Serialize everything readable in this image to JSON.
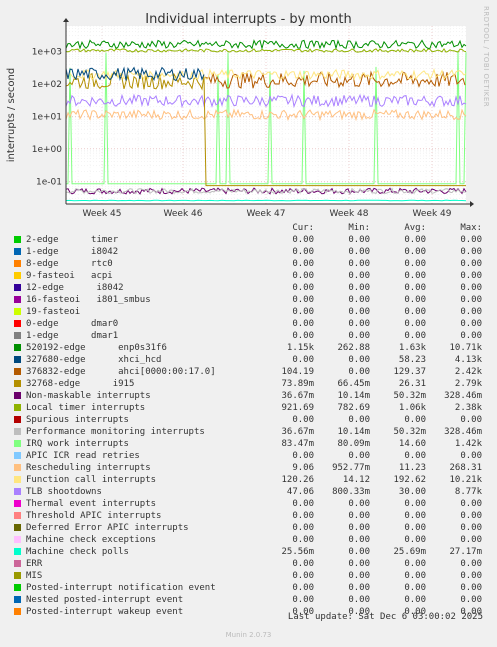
{
  "chart_data": {
    "type": "line",
    "title": "Individual interrupts - by month",
    "ylabel": "interrupts / second",
    "yscale": "log",
    "ylim": [
      0.02,
      6000
    ],
    "ytick_values": [
      0.1,
      1,
      10,
      100,
      1000
    ],
    "ytick_labels": [
      "1e-01",
      "1e+00",
      "1e+01",
      "1e+02",
      "1e+03"
    ],
    "x_ticks": [
      "Week 45",
      "Week 46",
      "Week 47",
      "Week 48",
      "Week 49"
    ],
    "grid": true,
    "legend_headers": {
      "cur": "Cur:",
      "min": "Min:",
      "avg": "Avg:",
      "max": "Max:"
    },
    "series": [
      {
        "name": "2-edge      timer",
        "color": "#00cc00",
        "cur": "0.00",
        "min": "0.00",
        "avg": "0.00",
        "max": "0.00"
      },
      {
        "name": "1-edge      i8042",
        "color": "#0066b3",
        "cur": "0.00",
        "min": "0.00",
        "avg": "0.00",
        "max": "0.00"
      },
      {
        "name": "8-edge      rtc0",
        "color": "#ff8000",
        "cur": "0.00",
        "min": "0.00",
        "avg": "0.00",
        "max": "0.00"
      },
      {
        "name": "9-fasteoi   acpi",
        "color": "#ffcc00",
        "cur": "0.00",
        "min": "0.00",
        "avg": "0.00",
        "max": "0.00"
      },
      {
        "name": "12-edge      i8042",
        "color": "#330099",
        "cur": "0.00",
        "min": "0.00",
        "avg": "0.00",
        "max": "0.00"
      },
      {
        "name": "16-fasteoi   i801_smbus",
        "color": "#990099",
        "cur": "0.00",
        "min": "0.00",
        "avg": "0.00",
        "max": "0.00"
      },
      {
        "name": "19-fasteoi",
        "color": "#ccff00",
        "cur": "0.00",
        "min": "0.00",
        "avg": "0.00",
        "max": "0.00"
      },
      {
        "name": "0-edge      dmar0",
        "color": "#ff0000",
        "cur": "0.00",
        "min": "0.00",
        "avg": "0.00",
        "max": "0.00"
      },
      {
        "name": "1-edge      dmar1",
        "color": "#808080",
        "cur": "0.00",
        "min": "0.00",
        "avg": "0.00",
        "max": "0.00"
      },
      {
        "name": "520192-edge      enp0s31f6",
        "color": "#008f00",
        "cur": "1.15k",
        "min": "262.88",
        "avg": "1.63k",
        "max": "10.71k"
      },
      {
        "name": "327680-edge      xhci_hcd",
        "color": "#00487d",
        "cur": "0.00",
        "min": "0.00",
        "avg": "58.23",
        "max": "4.13k"
      },
      {
        "name": "376832-edge      ahci[0000:00:17.0]",
        "color": "#b35a00",
        "cur": "104.19",
        "min": "0.00",
        "avg": "129.37",
        "max": "2.42k"
      },
      {
        "name": "32768-edge      i915",
        "color": "#b38f00",
        "cur": "73.89m",
        "min": "66.45m",
        "avg": "26.31",
        "max": "2.79k"
      },
      {
        "name": "Non-maskable interrupts",
        "color": "#6b006b",
        "cur": "36.67m",
        "min": "10.14m",
        "avg": "50.32m",
        "max": "328.46m"
      },
      {
        "name": "Local timer interrupts",
        "color": "#8fb300",
        "cur": "921.69",
        "min": "782.69",
        "avg": "1.06k",
        "max": "2.38k"
      },
      {
        "name": "Spurious interrupts",
        "color": "#b30000",
        "cur": "0.00",
        "min": "0.00",
        "avg": "0.00",
        "max": "0.00"
      },
      {
        "name": "Performance monitoring interrupts",
        "color": "#bebebe",
        "cur": "36.67m",
        "min": "10.14m",
        "avg": "50.32m",
        "max": "328.46m"
      },
      {
        "name": "IRQ work interrupts",
        "color": "#80ff80",
        "cur": "83.47m",
        "min": "80.09m",
        "avg": "14.60",
        "max": "1.42k"
      },
      {
        "name": "APIC ICR read retries",
        "color": "#80c9ff",
        "cur": "0.00",
        "min": "0.00",
        "avg": "0.00",
        "max": "0.00"
      },
      {
        "name": "Rescheduling interrupts",
        "color": "#ffc080",
        "cur": "9.06",
        "min": "952.77m",
        "avg": "11.23",
        "max": "268.31"
      },
      {
        "name": "Function call interrupts",
        "color": "#ffe680",
        "cur": "120.26",
        "min": "14.12",
        "avg": "192.62",
        "max": "10.21k"
      },
      {
        "name": "TLB shootdowns",
        "color": "#aa80ff",
        "cur": "47.06",
        "min": "800.33m",
        "avg": "30.00",
        "max": "8.77k"
      },
      {
        "name": "Thermal event interrupts",
        "color": "#ee00cc",
        "cur": "0.00",
        "min": "0.00",
        "avg": "0.00",
        "max": "0.00"
      },
      {
        "name": "Threshold APIC interrupts",
        "color": "#ff8080",
        "cur": "0.00",
        "min": "0.00",
        "avg": "0.00",
        "max": "0.00"
      },
      {
        "name": "Deferred Error APIC interrupts",
        "color": "#666600",
        "cur": "0.00",
        "min": "0.00",
        "avg": "0.00",
        "max": "0.00"
      },
      {
        "name": "Machine check exceptions",
        "color": "#ffbfff",
        "cur": "0.00",
        "min": "0.00",
        "avg": "0.00",
        "max": "0.00"
      },
      {
        "name": "Machine check polls",
        "color": "#00ffcc",
        "cur": "25.56m",
        "min": "0.00",
        "avg": "25.69m",
        "max": "27.17m"
      },
      {
        "name": "ERR",
        "color": "#cc6699",
        "cur": "0.00",
        "min": "0.00",
        "avg": "0.00",
        "max": "0.00"
      },
      {
        "name": "MIS",
        "color": "#999900",
        "cur": "0.00",
        "min": "0.00",
        "avg": "0.00",
        "max": "0.00"
      },
      {
        "name": "Posted-interrupt notification event",
        "color": "#00cc00",
        "cur": "0.00",
        "min": "0.00",
        "avg": "0.00",
        "max": "0.00"
      },
      {
        "name": "Nested posted-interrupt event",
        "color": "#0066b3",
        "cur": "0.00",
        "min": "0.00",
        "avg": "0.00",
        "max": "0.00"
      },
      {
        "name": "Posted-interrupt wakeup event",
        "color": "#ff8000",
        "cur": "0.00",
        "min": "0.00",
        "avg": "0.00",
        "max": "0.00"
      }
    ]
  },
  "footer": {
    "last_update": "Last update: Sat Dec  6 03:00:02 2025"
  },
  "watermark": "RRDTOOL / TOBI OETIKER",
  "munin_version": "Munin 2.0.73"
}
